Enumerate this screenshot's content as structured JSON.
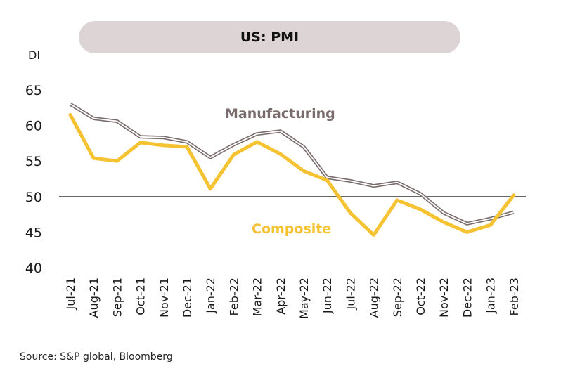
{
  "chart_data": {
    "type": "line",
    "title": "US: PMI",
    "ylabel": "DI",
    "ylim": [
      40,
      65
    ],
    "yticks": [
      40,
      45,
      50,
      55,
      60,
      65
    ],
    "reference_line": 50,
    "categories": [
      "Jul-21",
      "Aug-21",
      "Sep-21",
      "Oct-21",
      "Nov-21",
      "Dec-21",
      "Jan-22",
      "Feb-22",
      "Mar-22",
      "Apr-22",
      "May-22",
      "Jun-22",
      "Jul-22",
      "Aug-22",
      "Sep-22",
      "Oct-22",
      "Nov-22",
      "Dec-22",
      "Jan-23",
      "Feb-23"
    ],
    "series": [
      {
        "name": "Manufacturing",
        "color": "#7a6c6c",
        "values": [
          63.0,
          61.0,
          60.6,
          58.4,
          58.3,
          57.7,
          55.5,
          57.3,
          58.8,
          59.2,
          57.0,
          52.7,
          52.2,
          51.5,
          52.0,
          50.4,
          47.7,
          46.2,
          46.9,
          47.8
        ]
      },
      {
        "name": "Composite",
        "color": "#f5c231",
        "values": [
          61.5,
          55.4,
          55.0,
          57.6,
          57.2,
          57.0,
          51.1,
          55.9,
          57.7,
          56.0,
          53.6,
          52.3,
          47.7,
          44.6,
          49.5,
          48.2,
          46.4,
          45.0,
          46.0,
          50.2
        ]
      }
    ],
    "label_colors": {
      "Manufacturing": "#7a6c6c",
      "Composite": "#f5c231"
    }
  },
  "footer": {
    "source": "Source: S&P global, Bloomberg"
  }
}
